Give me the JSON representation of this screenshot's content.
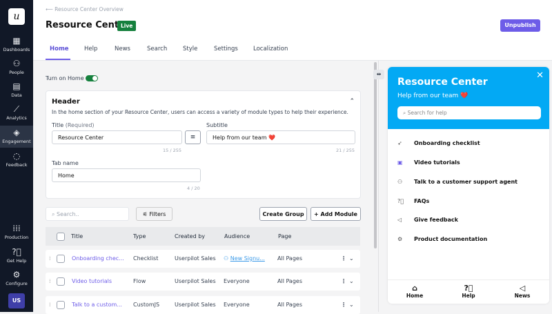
{
  "sidebar": {
    "logo": "u",
    "items": [
      {
        "label": "Dashboards",
        "icon": "grid-icon"
      },
      {
        "label": "People",
        "icon": "people-icon"
      },
      {
        "label": "Data",
        "icon": "data-icon"
      },
      {
        "label": "Analytics",
        "icon": "chart-icon"
      },
      {
        "label": "Engagement",
        "icon": "layers-icon"
      },
      {
        "label": "Feedback",
        "icon": "chat-icon"
      }
    ],
    "bottom": [
      {
        "label": "Production",
        "icon": "apps-icon"
      },
      {
        "label": "Get Help",
        "icon": "help-icon"
      },
      {
        "label": "Configure",
        "icon": "gear-icon"
      }
    ],
    "avatar": "US"
  },
  "header": {
    "breadcrumb": "Resource Center Overview",
    "title": "Resource Center",
    "status": "Live",
    "unpublish": "Unpublish",
    "tabs": [
      "Home",
      "Help",
      "News",
      "Search",
      "Style",
      "Settings",
      "Localization"
    ]
  },
  "home": {
    "toggle_label": "Turn on Home",
    "toggle_on": true,
    "card": {
      "title": "Header",
      "desc": "In the home section of your Resource Center, users can access a variety of module types to help their experience.",
      "title_label": "Title",
      "title_req": "(Required)",
      "title_value": "Resource Center",
      "title_count": "15 / 255",
      "subtitle_label": "Subtitle",
      "subtitle_value": "Help from our team ❤️",
      "subtitle_count": "21 / 255",
      "tabname_label": "Tab name",
      "tabname_value": "Home",
      "tabname_count": "4 / 20"
    }
  },
  "table": {
    "search_placeholder": "Search..",
    "filters": "Filters",
    "create_group": "Create Group",
    "add_module": "Add Module",
    "columns": [
      "Title",
      "Type",
      "Created by",
      "Audience",
      "Page"
    ],
    "rows": [
      {
        "title": "Onboarding chec...",
        "type": "Checklist",
        "created_by": "Userpilot Sales",
        "audience": "New Signu...",
        "page": "All Pages"
      },
      {
        "title": "Video tutorials",
        "type": "Flow",
        "created_by": "Userpilot Sales",
        "audience": "Everyone",
        "page": "All Pages"
      },
      {
        "title": "Talk to a custom...",
        "type": "CustomJS",
        "created_by": "Userpilot Sales",
        "audience": "Everyone",
        "page": "All Pages"
      }
    ]
  },
  "preview": {
    "title": "Resource Center",
    "subtitle": "Help from our team ❤️",
    "search_placeholder": "Search for help",
    "accent": "#03a9f4",
    "items": [
      {
        "label": "Onboarding checklist",
        "icon": "rocket-icon"
      },
      {
        "label": "Video tutorials",
        "icon": "video-icon"
      },
      {
        "label": "Talk to a customer support agent",
        "icon": "people-icon"
      },
      {
        "label": "FAQs",
        "icon": "question-icon"
      },
      {
        "label": "Give feedback",
        "icon": "megaphone-icon"
      },
      {
        "label": "Product documentation",
        "icon": "gear-icon"
      }
    ],
    "footer": [
      "Home",
      "Help",
      "News"
    ]
  }
}
